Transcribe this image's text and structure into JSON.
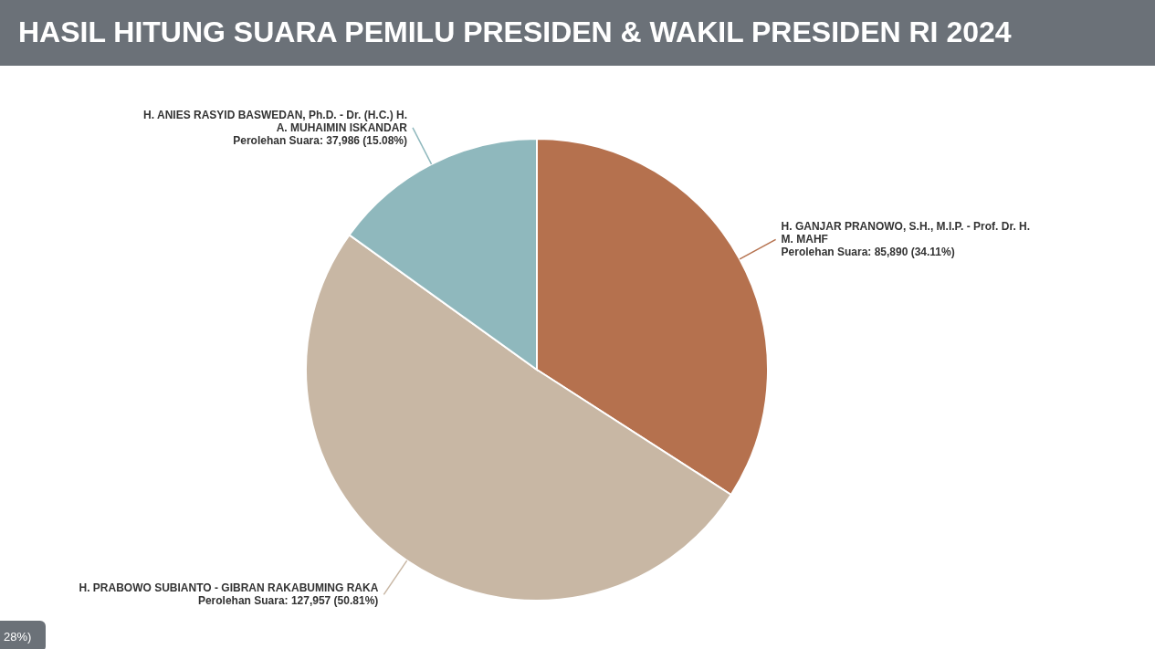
{
  "chart_data": {
    "type": "pie",
    "title": "HASIL HITUNG SUARA PEMILU PRESIDEN & WAKIL PRESIDEN RI 2024",
    "categories": [
      "H. GANJAR PRANOWO, S.H., M.I.P. - Prof. Dr. H. M. MAHF",
      "H. PRABOWO SUBIANTO - GIBRAN RAKABUMING RAKA",
      "H. ANIES RASYID BASWEDAN, Ph.D. - Dr. (H.C.) H. A. MUHAIMIN ISKANDAR"
    ],
    "values": [
      85890,
      127957,
      37986
    ],
    "colors": [
      "#b5714e",
      "#c8b7a4",
      "#8fb8bd"
    ],
    "value_labels": [
      "Perolehan Suara: 85,890 (34.11%)",
      "Perolehan Suara: 127,957 (50.81%)",
      "Perolehan Suara: 37,986 (15.08%)"
    ],
    "annotations": [
      "28%)"
    ]
  }
}
